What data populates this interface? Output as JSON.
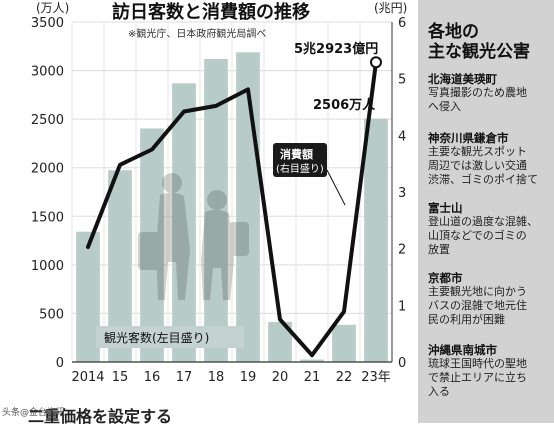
{
  "chart_data": {
    "type": "bar+line",
    "title": "訪日客数と消費額の推移",
    "source_note": "※観光庁、日本政府観光局調べ",
    "categories": [
      "2014",
      "15",
      "16",
      "17",
      "18",
      "19",
      "20",
      "21",
      "22",
      "23年"
    ],
    "left_axis": {
      "unit": "(万人)",
      "ticks": [
        "0",
        "500",
        "1000",
        "1500",
        "2000",
        "2500",
        "3000",
        "3500"
      ],
      "range": [
        0,
        3500
      ]
    },
    "right_axis": {
      "unit": "(兆円)",
      "ticks": [
        "0",
        "1",
        "2",
        "3",
        "4",
        "5",
        "6"
      ],
      "range": [
        0,
        6
      ]
    },
    "series": [
      {
        "name": "観光客数(左目盛り)",
        "type": "bar",
        "axis": "left",
        "color": "#b7cbc9",
        "values": [
          1341,
          1974,
          2404,
          2869,
          3119,
          3188,
          412,
          25,
          383,
          2506
        ]
      },
      {
        "name": "消費額(右目盛り)",
        "type": "line",
        "axis": "right",
        "color": "#111111",
        "values": [
          2.03,
          3.48,
          3.75,
          4.42,
          4.52,
          4.81,
          0.75,
          0.12,
          0.89,
          5.29
        ]
      }
    ],
    "annotations": {
      "consumption_2023": "5兆2923億円",
      "visitors_2023": "2506万人"
    },
    "grid": true
  },
  "labels": {
    "bar_legend": "観光客数(左目盛り)",
    "line_legend_line1": "消費額",
    "line_legend_line2": "(右目盛り)"
  },
  "side_panel": {
    "title_line1": "各地の",
    "title_line2": "主な観光公害",
    "regions": [
      {
        "name": "北海道美瑛町",
        "lines": [
          "写真撮影のため農地",
          "へ侵入"
        ]
      },
      {
        "name": "神奈川県鎌倉市",
        "lines": [
          "主要な観光スポット",
          "周辺では激しい交通",
          "渋滞、ゴミのポイ捨て"
        ]
      },
      {
        "name": "富士山",
        "lines": [
          "登山道の過度な混雑、",
          "山頂などでのゴミの",
          "放置"
        ]
      },
      {
        "name": "京都市",
        "lines": [
          "主要観光地に向かう",
          "バスの混雑で地元住",
          "民の利用が困難"
        ]
      },
      {
        "name": "沖縄県南城市",
        "lines": [
          "琉球王国時代の聖地",
          "で禁止エリアに立ち",
          "入る"
        ]
      }
    ]
  },
  "footer_text": "二重価格を設定する",
  "watermark": "头条@金台资讯"
}
